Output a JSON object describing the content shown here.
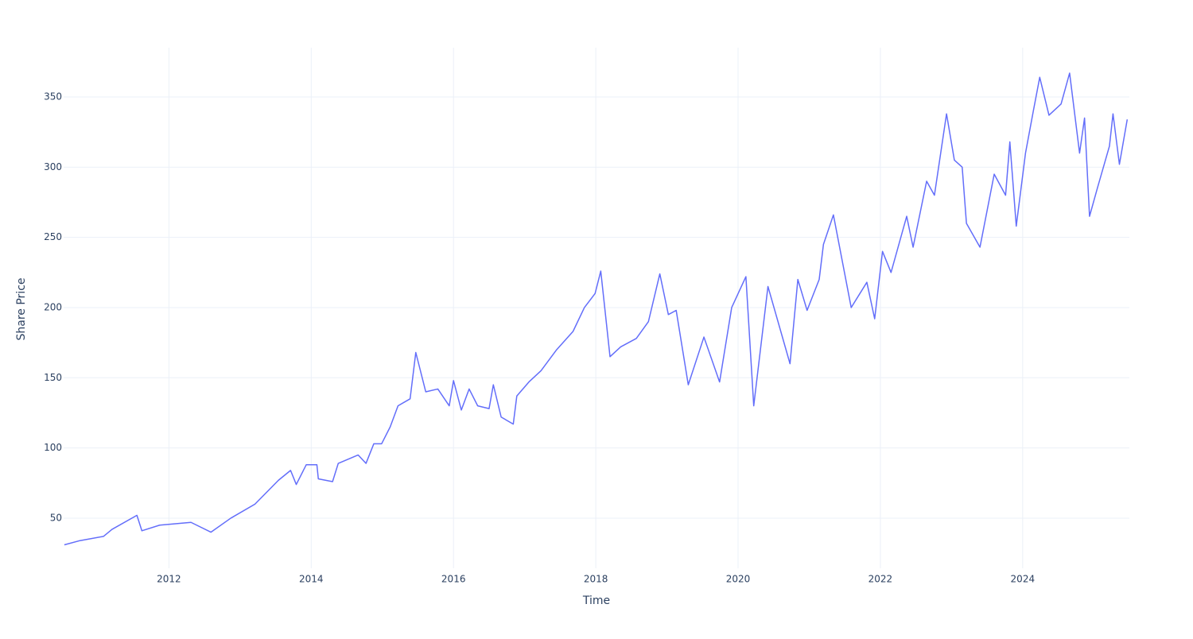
{
  "chart_data": {
    "type": "line",
    "x_label": "Time",
    "y_label": "Share Price",
    "x": [
      2010.53,
      2010.75,
      2011.08,
      2011.2,
      2011.55,
      2011.62,
      2011.87,
      2012.31,
      2012.59,
      2012.87,
      2013.21,
      2013.54,
      2013.71,
      2013.79,
      2013.93,
      2014.08,
      2014.1,
      2014.3,
      2014.38,
      2014.66,
      2014.77,
      2014.88,
      2014.99,
      2015.11,
      2015.22,
      2015.39,
      2015.47,
      2015.61,
      2015.78,
      2015.94,
      2016.0,
      2016.11,
      2016.22,
      2016.34,
      2016.5,
      2016.56,
      2016.67,
      2016.84,
      2016.89,
      2017.06,
      2017.23,
      2017.45,
      2017.68,
      2017.84,
      2017.99,
      2018.07,
      2018.2,
      2018.35,
      2018.57,
      2018.74,
      2018.9,
      2019.02,
      2019.13,
      2019.3,
      2019.52,
      2019.74,
      2019.91,
      2020.11,
      2020.22,
      2020.42,
      2020.73,
      2020.84,
      2020.97,
      2021.14,
      2021.2,
      2021.34,
      2021.59,
      2021.81,
      2021.92,
      2022.03,
      2022.15,
      2022.37,
      2022.46,
      2022.65,
      2022.76,
      2022.93,
      2023.04,
      2023.15,
      2023.21,
      2023.4,
      2023.6,
      2023.76,
      2023.82,
      2023.91,
      2024.04,
      2024.15,
      2024.24,
      2024.37,
      2024.54,
      2024.66,
      2024.8,
      2024.87,
      2024.94,
      2025.05,
      2025.22,
      2025.27,
      2025.36,
      2025.47
    ],
    "series": [
      {
        "name": "Share Price",
        "color": "#636efa",
        "values": [
          31,
          34,
          37,
          42,
          52,
          41,
          45,
          47,
          40,
          50,
          60,
          77,
          84,
          74,
          88,
          88,
          78,
          76,
          89,
          95,
          89,
          103,
          103,
          115,
          130,
          135,
          168,
          140,
          142,
          130,
          148,
          127,
          142,
          130,
          128,
          145,
          122,
          117,
          137,
          147,
          155,
          170,
          183,
          200,
          210,
          226,
          165,
          172,
          178,
          190,
          224,
          195,
          198,
          145,
          179,
          147,
          200,
          222,
          130,
          215,
          160,
          220,
          198,
          220,
          245,
          266,
          200,
          218,
          192,
          240,
          225,
          265,
          243,
          290,
          280,
          338,
          305,
          300,
          260,
          243,
          295,
          280,
          318,
          258,
          310,
          340,
          364,
          337,
          345,
          367,
          310,
          335,
          265,
          285,
          315,
          338,
          302,
          334
        ]
      }
    ],
    "xlim": [
      2010.52,
      2025.5
    ],
    "ylim": [
      14.3,
      385.1
    ],
    "xticks": [
      2012,
      2014,
      2016,
      2018,
      2020,
      2022,
      2024
    ],
    "yticks": [
      50,
      100,
      150,
      200,
      250,
      300,
      350
    ],
    "grid": true
  }
}
